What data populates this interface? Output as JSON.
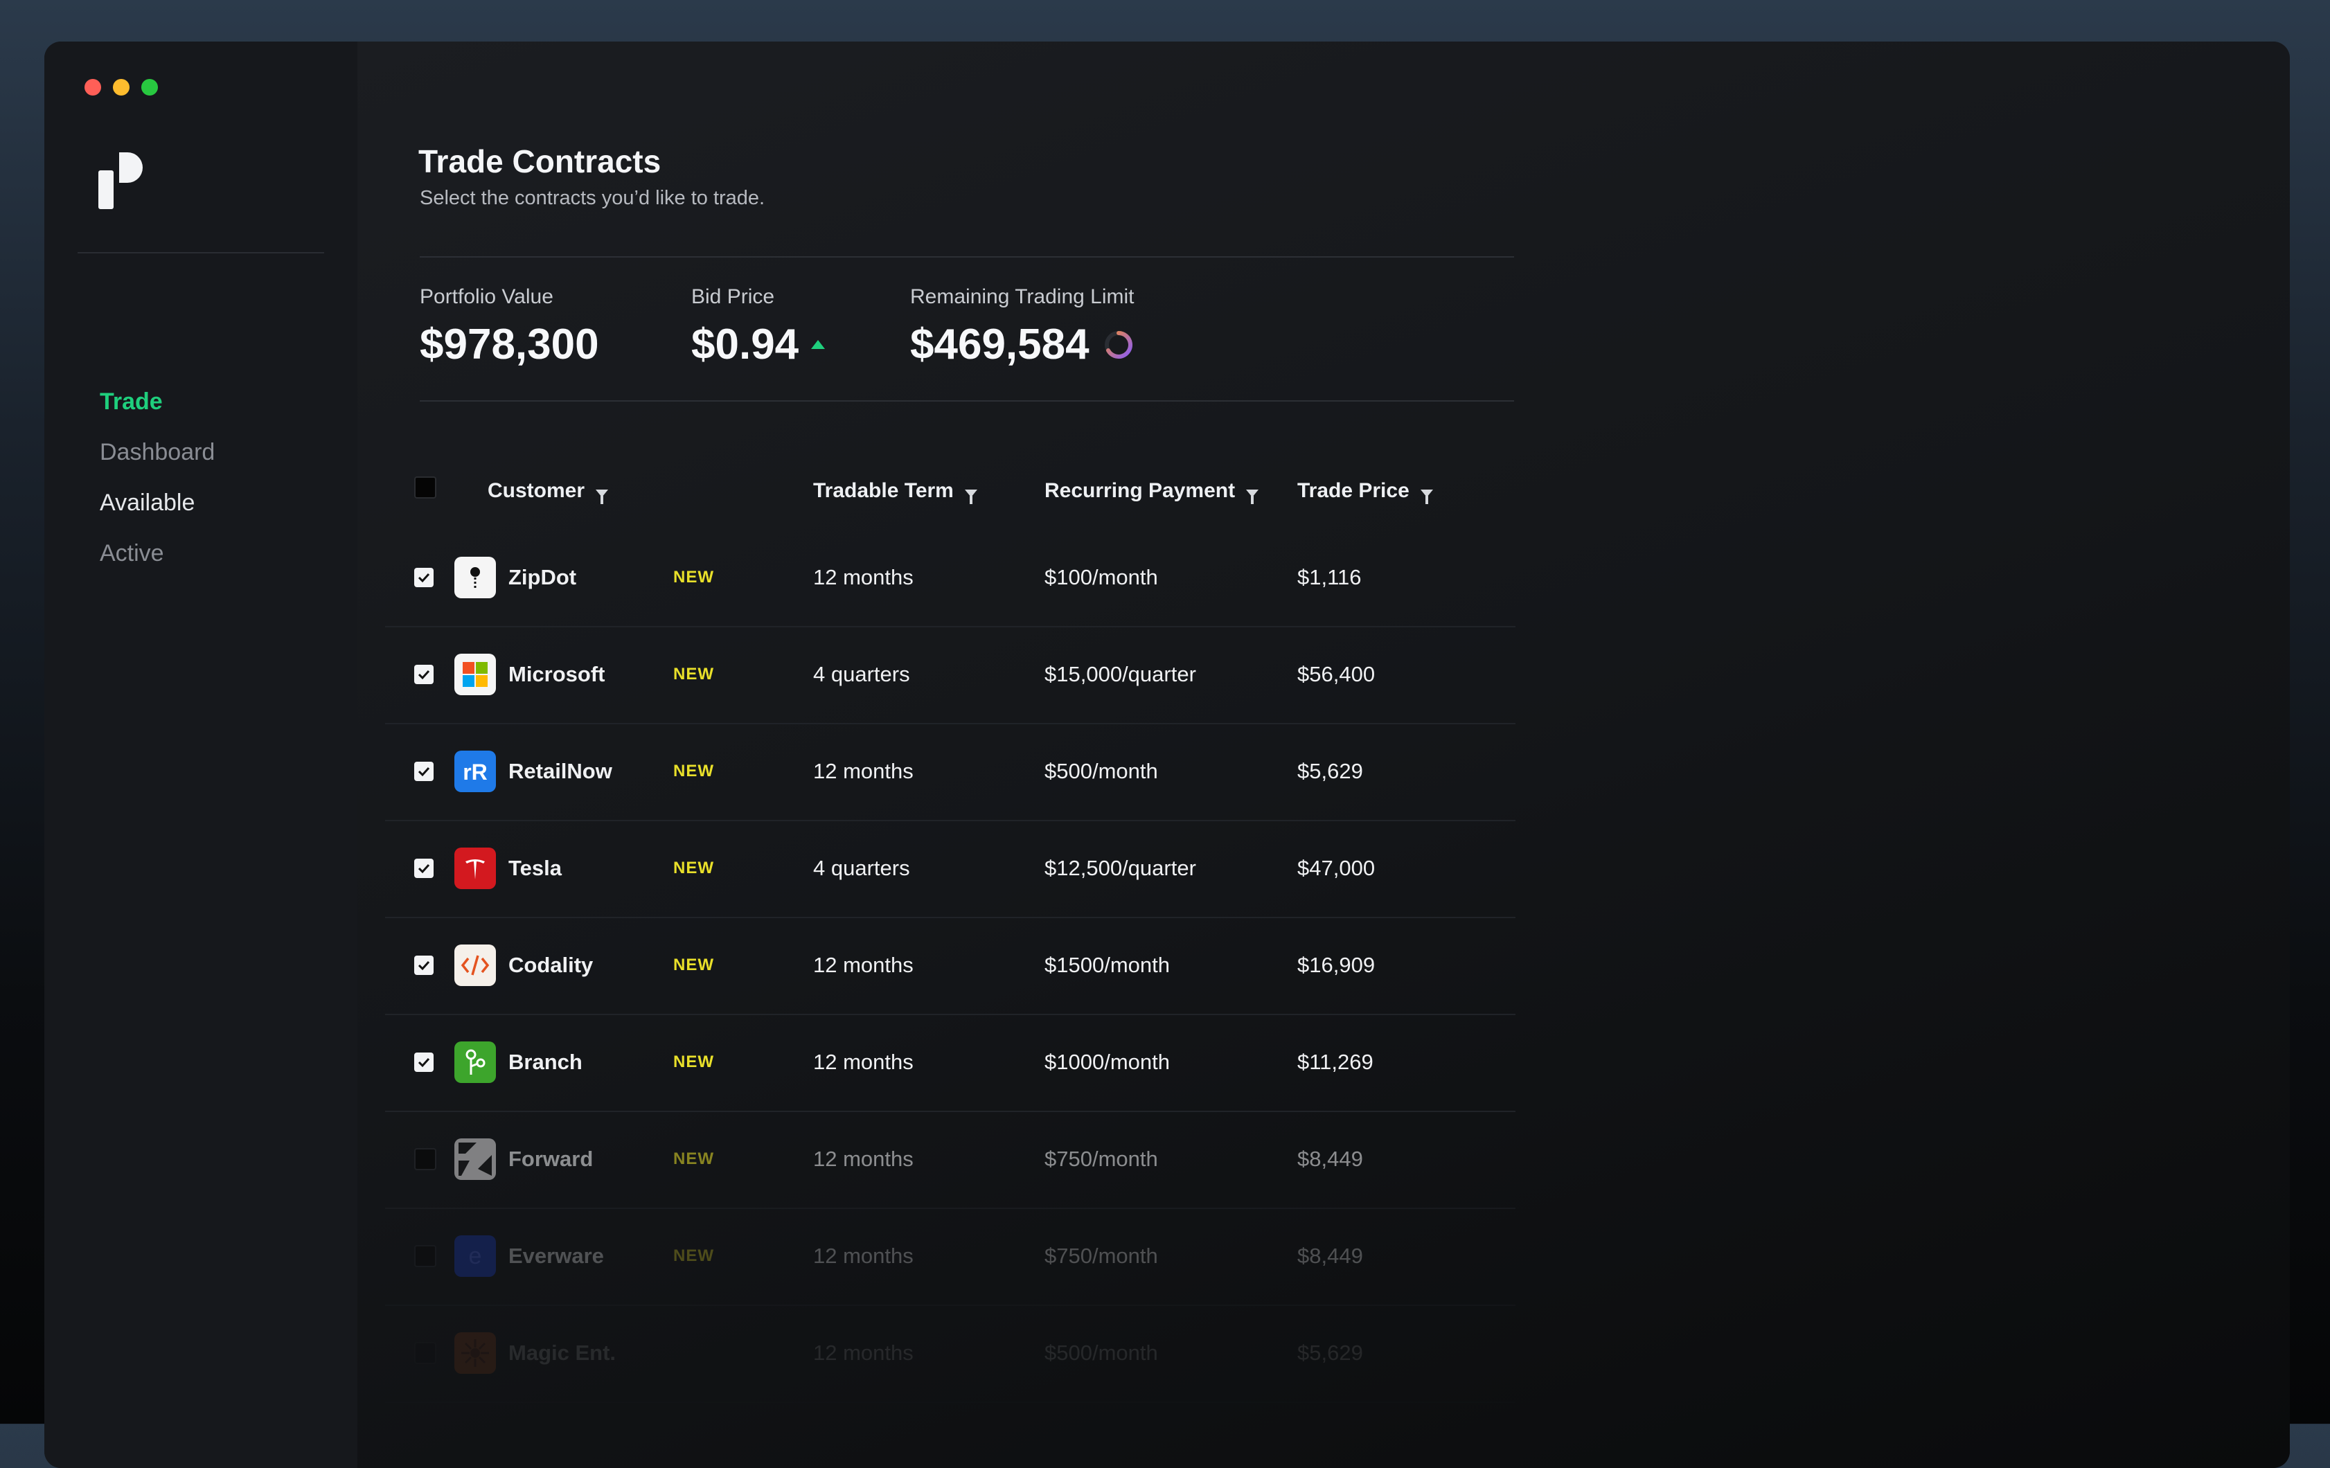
{
  "window": {
    "traffic_lights": [
      "#ff5f57",
      "#febc2e",
      "#28c840"
    ]
  },
  "brand": {
    "logo_icon": "p-logo-icon"
  },
  "sidebar": {
    "items": [
      {
        "label": "Trade",
        "state": "active"
      },
      {
        "label": "Dashboard",
        "state": "normal"
      },
      {
        "label": "Available",
        "state": "bright"
      },
      {
        "label": "Active",
        "state": "normal"
      }
    ]
  },
  "header": {
    "title": "Trade Contracts",
    "subtitle": "Select the contracts you’d like to trade."
  },
  "stats": {
    "portfolio_label": "Portfolio Value",
    "portfolio_value": "$978,300",
    "bid_label": "Bid Price",
    "bid_value": "$0.94",
    "limit_label": "Remaining Trading Limit",
    "limit_value": "$469,584"
  },
  "table": {
    "columns": [
      "Customer",
      "Tradable Term",
      "Recurring Payment",
      "Trade Price"
    ],
    "rows": [
      {
        "checked": true,
        "customer": "ZipDot",
        "icon": "zipdot-icon",
        "badge": "NEW",
        "term": "12 months",
        "payment": "$100/month",
        "price": "$1,116"
      },
      {
        "checked": true,
        "customer": "Microsoft",
        "icon": "microsoft-icon",
        "badge": "NEW",
        "term": "4 quarters",
        "payment": "$15,000/quarter",
        "price": "$56,400"
      },
      {
        "checked": true,
        "customer": "RetailNow",
        "icon": "retailnow-icon",
        "badge": "NEW",
        "term": "12 months",
        "payment": "$500/month",
        "price": "$5,629"
      },
      {
        "checked": true,
        "customer": "Tesla",
        "icon": "tesla-icon",
        "badge": "NEW",
        "term": "4 quarters",
        "payment": "$12,500/quarter",
        "price": "$47,000"
      },
      {
        "checked": true,
        "customer": "Codality",
        "icon": "codality-icon",
        "badge": "NEW",
        "term": "12 months",
        "payment": "$1500/month",
        "price": "$16,909"
      },
      {
        "checked": true,
        "customer": "Branch",
        "icon": "branch-icon",
        "badge": "NEW",
        "term": "12 months",
        "payment": "$1000/month",
        "price": "$11,269"
      },
      {
        "checked": false,
        "customer": "Forward",
        "icon": "forward-icon",
        "badge": "NEW",
        "term": "12 months",
        "payment": "$750/month",
        "price": "$8,449"
      },
      {
        "checked": false,
        "customer": "Everware",
        "icon": "everware-icon",
        "badge": "NEW",
        "term": "12 months",
        "payment": "$750/month",
        "price": "$8,449"
      },
      {
        "checked": false,
        "customer": "Magic Ent.",
        "icon": "magic-ent-icon",
        "badge": "",
        "term": "12 months",
        "payment": "$500/month",
        "price": "$5,629"
      }
    ]
  }
}
